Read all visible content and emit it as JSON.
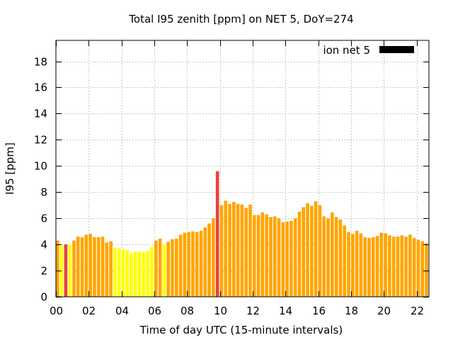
{
  "chart_data": {
    "type": "bar",
    "title": "Total I95 zenith [ppm] on NET 5, DoY=274",
    "xlabel": "Time of day UTC (15-minute intervals)",
    "ylabel": "I95 [ppm]",
    "xlim": [
      0,
      22.75
    ],
    "ylim": [
      0,
      19.6
    ],
    "bar_width_hours": 0.2,
    "grid": true,
    "legend_position": "top-right",
    "x_ticks": [
      {
        "value": 0,
        "label": "00"
      },
      {
        "value": 2,
        "label": "02"
      },
      {
        "value": 4,
        "label": "04"
      },
      {
        "value": 6,
        "label": "06"
      },
      {
        "value": 8,
        "label": "08"
      },
      {
        "value": 10,
        "label": "10"
      },
      {
        "value": 12,
        "label": "12"
      },
      {
        "value": 14,
        "label": "14"
      },
      {
        "value": 16,
        "label": "16"
      },
      {
        "value": 18,
        "label": "18"
      },
      {
        "value": 20,
        "label": "20"
      },
      {
        "value": 22,
        "label": "22"
      }
    ],
    "y_ticks": [
      {
        "value": 0,
        "label": "0"
      },
      {
        "value": 2,
        "label": "2"
      },
      {
        "value": 4,
        "label": "4"
      },
      {
        "value": 6,
        "label": "6"
      },
      {
        "value": 8,
        "label": "8"
      },
      {
        "value": 10,
        "label": "10"
      },
      {
        "value": 12,
        "label": "12"
      },
      {
        "value": 14,
        "label": "14"
      },
      {
        "value": 16,
        "label": "16"
      },
      {
        "value": 18,
        "label": "18"
      }
    ],
    "colors": {
      "yellow": "#ffff00",
      "orange": "#ffa500",
      "red": "#e8413c",
      "legend": "#000000"
    },
    "series": [
      {
        "name": "ion net 5",
        "values": [
          [
            0.0,
            4.3,
            "orange"
          ],
          [
            0.25,
            3.9,
            "yellow"
          ],
          [
            0.5,
            4.0,
            "red"
          ],
          [
            0.75,
            4.0,
            "yellow"
          ],
          [
            1.0,
            4.3,
            "orange"
          ],
          [
            1.25,
            4.6,
            "orange"
          ],
          [
            1.5,
            4.55,
            "orange"
          ],
          [
            1.75,
            4.75,
            "orange"
          ],
          [
            2.0,
            4.8,
            "orange"
          ],
          [
            2.25,
            4.55,
            "orange"
          ],
          [
            2.5,
            4.55,
            "orange"
          ],
          [
            2.75,
            4.6,
            "orange"
          ],
          [
            3.0,
            4.15,
            "orange"
          ],
          [
            3.25,
            4.25,
            "orange"
          ],
          [
            3.5,
            3.75,
            "yellow"
          ],
          [
            3.75,
            3.7,
            "yellow"
          ],
          [
            4.0,
            3.65,
            "yellow"
          ],
          [
            4.25,
            3.55,
            "yellow"
          ],
          [
            4.5,
            3.35,
            "yellow"
          ],
          [
            4.75,
            3.45,
            "yellow"
          ],
          [
            5.0,
            3.45,
            "yellow"
          ],
          [
            5.25,
            3.45,
            "yellow"
          ],
          [
            5.5,
            3.5,
            "yellow"
          ],
          [
            5.75,
            3.8,
            "yellow"
          ],
          [
            6.0,
            4.3,
            "orange"
          ],
          [
            6.25,
            4.45,
            "orange"
          ],
          [
            6.5,
            4.0,
            "yellow"
          ],
          [
            6.75,
            4.2,
            "orange"
          ],
          [
            7.0,
            4.4,
            "orange"
          ],
          [
            7.25,
            4.45,
            "orange"
          ],
          [
            7.5,
            4.75,
            "orange"
          ],
          [
            7.75,
            4.9,
            "orange"
          ],
          [
            8.0,
            4.95,
            "orange"
          ],
          [
            8.25,
            5.0,
            "orange"
          ],
          [
            8.5,
            4.95,
            "orange"
          ],
          [
            8.75,
            5.05,
            "orange"
          ],
          [
            9.0,
            5.3,
            "orange"
          ],
          [
            9.25,
            5.6,
            "orange"
          ],
          [
            9.5,
            6.0,
            "orange"
          ],
          [
            9.75,
            9.6,
            "red"
          ],
          [
            10.0,
            7.0,
            "orange"
          ],
          [
            10.25,
            7.35,
            "orange"
          ],
          [
            10.5,
            7.1,
            "orange"
          ],
          [
            10.75,
            7.25,
            "orange"
          ],
          [
            11.0,
            7.1,
            "orange"
          ],
          [
            11.25,
            7.05,
            "orange"
          ],
          [
            11.5,
            6.8,
            "orange"
          ],
          [
            11.75,
            7.05,
            "orange"
          ],
          [
            12.0,
            6.25,
            "orange"
          ],
          [
            12.25,
            6.25,
            "orange"
          ],
          [
            12.5,
            6.45,
            "orange"
          ],
          [
            12.75,
            6.3,
            "orange"
          ],
          [
            13.0,
            6.1,
            "orange"
          ],
          [
            13.25,
            6.15,
            "orange"
          ],
          [
            13.5,
            6.0,
            "orange"
          ],
          [
            13.75,
            5.7,
            "orange"
          ],
          [
            14.0,
            5.75,
            "orange"
          ],
          [
            14.25,
            5.8,
            "orange"
          ],
          [
            14.5,
            6.0,
            "orange"
          ],
          [
            14.75,
            6.5,
            "orange"
          ],
          [
            15.0,
            6.85,
            "orange"
          ],
          [
            15.25,
            7.15,
            "orange"
          ],
          [
            15.5,
            6.95,
            "orange"
          ],
          [
            15.75,
            7.3,
            "orange"
          ],
          [
            16.0,
            7.0,
            "orange"
          ],
          [
            16.25,
            6.15,
            "orange"
          ],
          [
            16.5,
            6.0,
            "orange"
          ],
          [
            16.75,
            6.45,
            "orange"
          ],
          [
            17.0,
            6.1,
            "orange"
          ],
          [
            17.25,
            5.9,
            "orange"
          ],
          [
            17.5,
            5.45,
            "orange"
          ],
          [
            17.75,
            4.95,
            "orange"
          ],
          [
            18.0,
            4.8,
            "orange"
          ],
          [
            18.25,
            5.05,
            "orange"
          ],
          [
            18.5,
            4.85,
            "orange"
          ],
          [
            18.75,
            4.55,
            "orange"
          ],
          [
            19.0,
            4.5,
            "orange"
          ],
          [
            19.25,
            4.55,
            "orange"
          ],
          [
            19.5,
            4.65,
            "orange"
          ],
          [
            19.75,
            4.9,
            "orange"
          ],
          [
            20.0,
            4.85,
            "orange"
          ],
          [
            20.25,
            4.7,
            "orange"
          ],
          [
            20.5,
            4.6,
            "orange"
          ],
          [
            20.75,
            4.6,
            "orange"
          ],
          [
            21.0,
            4.7,
            "orange"
          ],
          [
            21.25,
            4.6,
            "orange"
          ],
          [
            21.5,
            4.75,
            "orange"
          ],
          [
            21.75,
            4.5,
            "orange"
          ],
          [
            22.0,
            4.35,
            "orange"
          ],
          [
            22.25,
            4.25,
            "orange"
          ],
          [
            22.5,
            4.1,
            "orange"
          ]
        ]
      }
    ]
  }
}
